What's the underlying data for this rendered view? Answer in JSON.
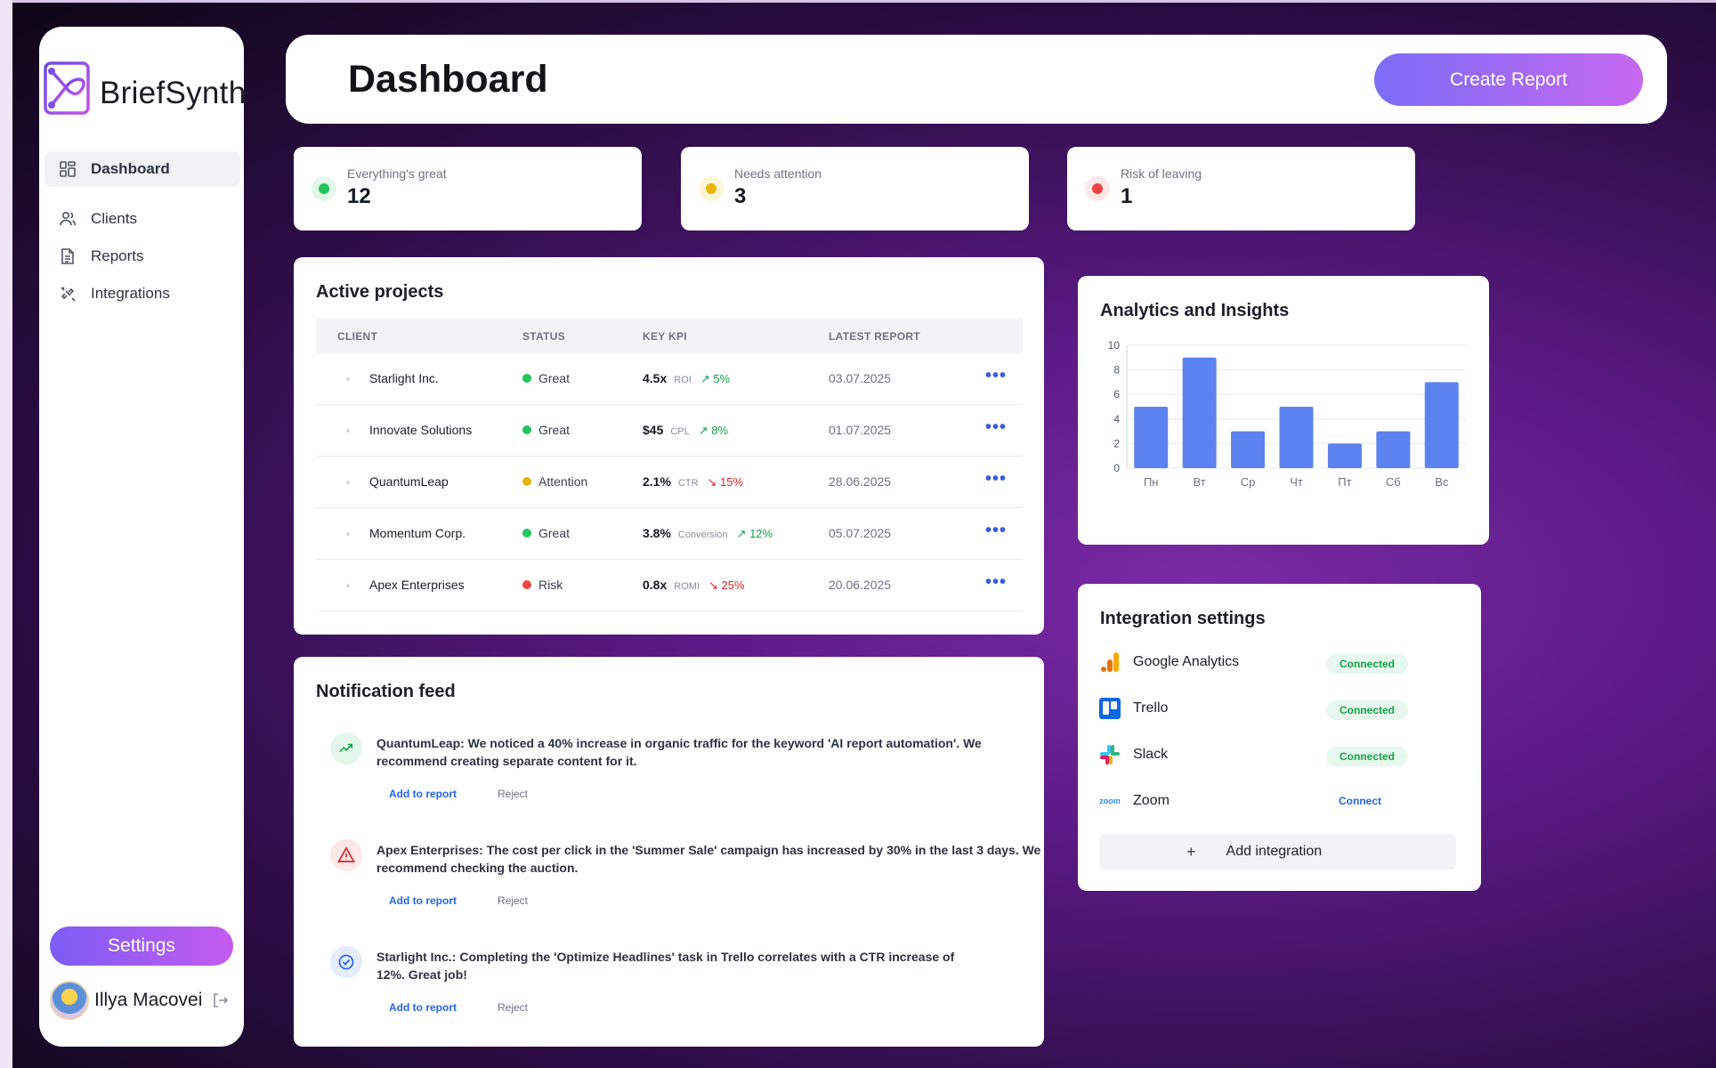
{
  "app": {
    "name": "BriefSynth"
  },
  "sidebar": {
    "items": [
      {
        "label": "Dashboard",
        "icon": "dashboard-icon",
        "active": true
      },
      {
        "label": "Clients",
        "icon": "users-icon"
      },
      {
        "label": "Reports",
        "icon": "document-icon"
      },
      {
        "label": "Integrations",
        "icon": "plug-icon"
      }
    ],
    "settings_label": "Settings",
    "user_name": "Illya Macovei"
  },
  "header": {
    "title": "Dashboard",
    "create_label": "Create Report"
  },
  "stats": [
    {
      "label": "Everything's great",
      "value": "12",
      "color": "#22c55e"
    },
    {
      "label": "Needs attention",
      "value": "3",
      "color": "#eab308"
    },
    {
      "label": "Risk of leaving",
      "value": "1",
      "color": "#ef4444"
    }
  ],
  "projects": {
    "title": "Active projects",
    "columns": [
      "CLIENT",
      "STATUS",
      "KEY KPI",
      "LATEST REPORT"
    ],
    "rows": [
      {
        "client": "Starlight Inc.",
        "status": "Great",
        "status_color": "#22c55e",
        "kpi_value": "4.5x",
        "kpi_name": "ROI",
        "delta": "5%",
        "trend": "up",
        "date": "03.07.2025"
      },
      {
        "client": "Innovate Solutions",
        "status": "Great",
        "status_color": "#22c55e",
        "kpi_value": "$45",
        "kpi_name": "CPL",
        "delta": "8%",
        "trend": "up",
        "date": "01.07.2025"
      },
      {
        "client": "QuantumLeap",
        "status": "Attention",
        "status_color": "#eab308",
        "kpi_value": "2.1%",
        "kpi_name": "CTR",
        "delta": "15%",
        "trend": "down",
        "date": "28.06.2025"
      },
      {
        "client": "Momentum Corp.",
        "status": "Great",
        "status_color": "#22c55e",
        "kpi_value": "3.8%",
        "kpi_name": "Conversion",
        "delta": "12%",
        "trend": "up",
        "date": "05.07.2025"
      },
      {
        "client": "Apex Enterprises",
        "status": "Risk",
        "status_color": "#ef4444",
        "kpi_value": "0.8x",
        "kpi_name": "ROMI",
        "delta": "25%",
        "trend": "down",
        "date": "20.06.2025"
      }
    ],
    "more_label": "•••"
  },
  "notifications": {
    "title": "Notification feed",
    "add_label": "Add to report",
    "reject_label": "Reject",
    "items": [
      {
        "icon": "trend-up-icon",
        "text": "QuantumLeap: We noticed a 40% increase in organic traffic for the keyword 'AI report automation'. We recommend creating separate content for it."
      },
      {
        "icon": "warning-icon",
        "text": "Apex Enterprises: The cost per click in the 'Summer Sale' campaign has increased by 30% in the last 3 days. We recommend checking the auction."
      },
      {
        "icon": "check-circle-icon",
        "text": "Starlight Inc.: Completing the 'Optimize Headlines' task in Trello correlates with a CTR increase of 12%. Great job!"
      }
    ]
  },
  "analytics": {
    "title": "Analytics and Insights"
  },
  "chart_data": {
    "type": "bar",
    "title": "",
    "categories": [
      "Пн",
      "Вт",
      "Ср",
      "Чт",
      "Пт",
      "Сб",
      "Вс"
    ],
    "values": [
      5,
      9,
      3,
      5,
      2,
      3,
      7
    ],
    "ylim": [
      0,
      10
    ],
    "yticks": [
      0,
      2,
      4,
      6,
      8,
      10
    ],
    "grid": true,
    "color": "#5b82ee"
  },
  "integrations": {
    "title": "Integration settings",
    "items": [
      {
        "name": "Google Analytics",
        "icon": "google-analytics-icon",
        "state": "Connected"
      },
      {
        "name": "Trello",
        "icon": "trello-icon",
        "state": "Connected"
      },
      {
        "name": "Slack",
        "icon": "slack-icon",
        "state": "Connected"
      },
      {
        "name": "Zoom",
        "icon": "zoom-icon",
        "state": "Connect"
      }
    ],
    "zoom_logo_text": "zoom",
    "add_label": "Add integration"
  }
}
